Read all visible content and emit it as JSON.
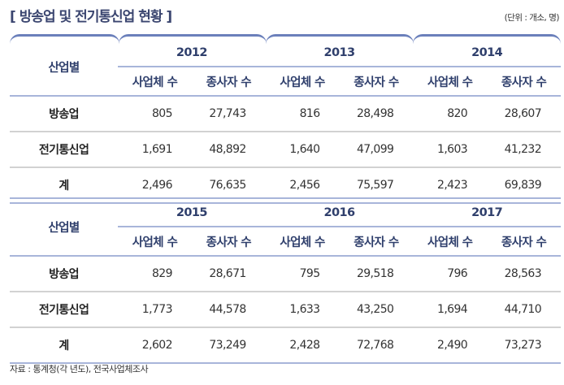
{
  "title": "[ 방송업 및 전기통신업 현황 ]",
  "unit": "(단위 : 개소, 명)",
  "row_header": "산업별",
  "sub_headers": [
    "사업체 수",
    "종사자 수"
  ],
  "tables": [
    {
      "years": [
        "2012",
        "2013",
        "2014"
      ],
      "rows": [
        {
          "label": "방송업",
          "values": [
            "805",
            "27,743",
            "816",
            "28,498",
            "820",
            "28,607"
          ]
        },
        {
          "label": "전기통신업",
          "values": [
            "1,691",
            "48,892",
            "1,640",
            "47,099",
            "1,603",
            "41,232"
          ]
        },
        {
          "label": "계",
          "values": [
            "2,496",
            "76,635",
            "2,456",
            "75,597",
            "2,423",
            "69,839"
          ]
        }
      ]
    },
    {
      "years": [
        "2015",
        "2016",
        "2017"
      ],
      "rows": [
        {
          "label": "방송업",
          "values": [
            "829",
            "28,671",
            "795",
            "29,518",
            "796",
            "28,563"
          ]
        },
        {
          "label": "전기통신업",
          "values": [
            "1,773",
            "44,578",
            "1,633",
            "43,250",
            "1,694",
            "44,710"
          ]
        },
        {
          "label": "계",
          "values": [
            "2,602",
            "73,249",
            "2,428",
            "72,768",
            "2,490",
            "73,273"
          ]
        }
      ]
    }
  ],
  "footer": "자료 : 통계청(각 년도), 전국사업체조사"
}
